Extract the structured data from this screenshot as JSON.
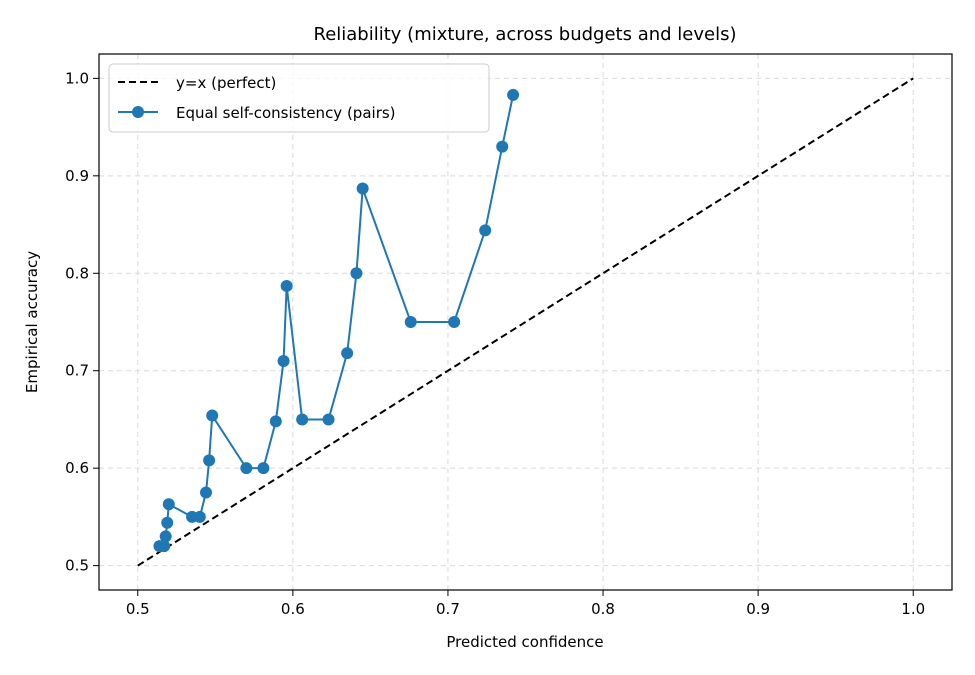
{
  "chart_data": {
    "type": "line",
    "title": "Reliability (mixture, across budgets and levels)",
    "xlabel": "Predicted confidence",
    "ylabel": "Empirical accuracy",
    "xlim": [
      0.475,
      1.025
    ],
    "ylim": [
      0.475,
      1.025
    ],
    "xticks": [
      "0.5",
      "0.6",
      "0.7",
      "0.8",
      "0.9",
      "1.0"
    ],
    "yticks": [
      "0.5",
      "0.6",
      "0.7",
      "0.8",
      "0.9",
      "1.0"
    ],
    "grid": true,
    "legend_position": "top-left",
    "series": [
      {
        "name": "y=x (perfect)",
        "style": "dashed",
        "color": "#000000",
        "x": [
          0.5,
          1.0
        ],
        "y": [
          0.5,
          1.0
        ]
      },
      {
        "name": "Equal self-consistency (pairs)",
        "style": "line-markers",
        "color": "#1f77b4",
        "x": [
          0.514,
          0.517,
          0.518,
          0.519,
          0.52,
          0.535,
          0.54,
          0.544,
          0.546,
          0.548,
          0.57,
          0.581,
          0.589,
          0.594,
          0.596,
          0.606,
          0.623,
          0.635,
          0.641,
          0.645,
          0.676,
          0.704,
          0.724,
          0.735,
          0.742
        ],
        "y": [
          0.52,
          0.52,
          0.53,
          0.544,
          0.563,
          0.55,
          0.55,
          0.575,
          0.608,
          0.654,
          0.6,
          0.6,
          0.648,
          0.71,
          0.787,
          0.65,
          0.65,
          0.718,
          0.8,
          0.887,
          0.75,
          0.75,
          0.844,
          0.93,
          0.983
        ]
      }
    ]
  }
}
